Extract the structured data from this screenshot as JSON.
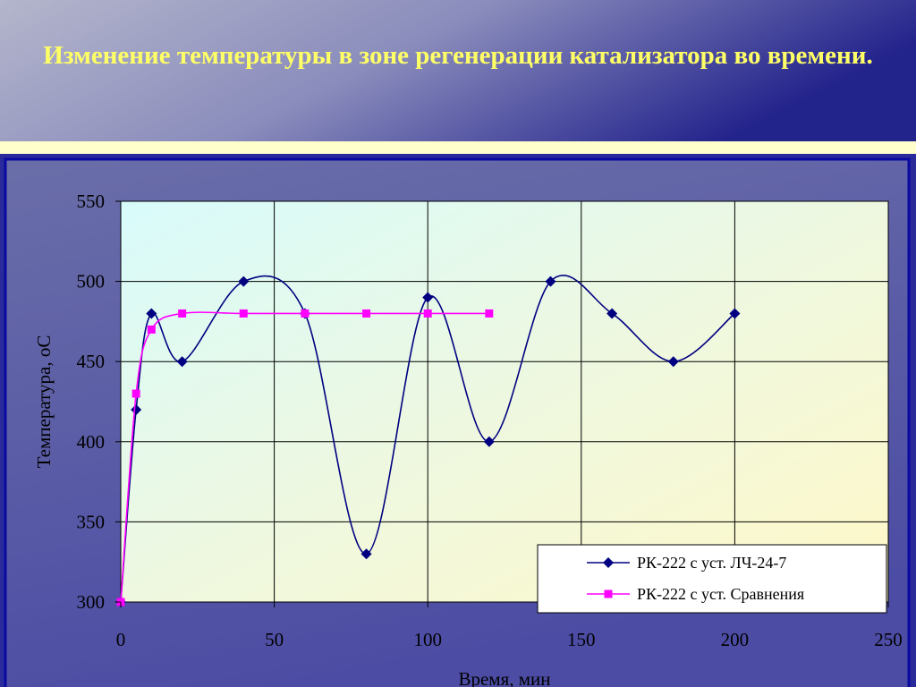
{
  "chart_data": {
    "type": "line",
    "title": "Изменение температуры в зоне регенерации катализатора во времени.",
    "x_label": "Время, мин",
    "y_label": "Температура, оС",
    "series": [
      {
        "name": "РК-222 с уст. ЛЧ-24-7",
        "color": "#000080",
        "marker": "diamond",
        "x": [
          0,
          5,
          10,
          20,
          40,
          60,
          80,
          100,
          120,
          140,
          160,
          180,
          200
        ],
        "values": [
          300,
          420,
          480,
          450,
          500,
          480,
          330,
          490,
          400,
          500,
          480,
          450,
          480
        ]
      },
      {
        "name": "РК-222 с уст. Сравнения",
        "color": "#ff00ff",
        "marker": "square",
        "x": [
          0,
          5,
          10,
          20,
          40,
          60,
          80,
          100,
          120
        ],
        "values": [
          300,
          430,
          470,
          480,
          480,
          480,
          480,
          480,
          480
        ]
      }
    ],
    "xlim": [
      0,
      250
    ],
    "xticks": [
      0,
      50,
      100,
      150,
      200,
      250
    ],
    "ylim": [
      300,
      550
    ],
    "yticks": [
      300,
      350,
      400,
      450,
      500,
      550
    ],
    "grid": true,
    "smooth": true,
    "legend": "lower right"
  }
}
